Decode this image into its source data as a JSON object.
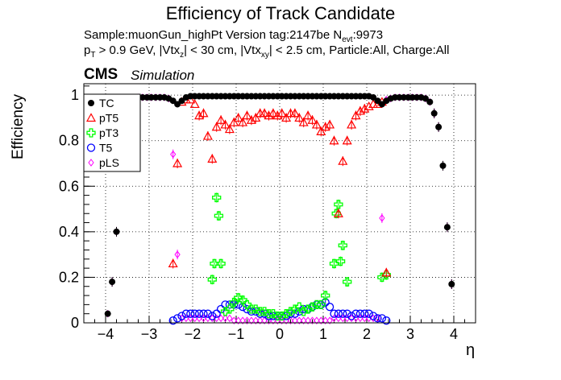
{
  "header": {
    "title": "Efficiency of Track Candidate",
    "line1": "Sample:muonGun_highPt   Version tag:2147be  N",
    "line1_sub": "evt",
    "line1_end": ":9973",
    "line2_a": "p",
    "line2_a_sub": "T",
    "line2_b": " > 0.9 GeV, |Vtx",
    "line2_b_sub": "z",
    "line2_c": "| < 30 cm, |Vtx",
    "line2_c_sub": "xy",
    "line2_d": "| < 2.5 cm, Particle:All, Charge:All",
    "cms": "CMS",
    "simulation": "Simulation"
  },
  "colors": {
    "TC": "#000000",
    "pT5": "#ff0000",
    "pT3": "#00ff00",
    "T5": "#0000ff",
    "pLS": "#ff00ff"
  },
  "chart_data": {
    "type": "scatter",
    "xlabel": "η",
    "ylabel": "Efficiency",
    "xlim": [
      -4.5,
      4.5
    ],
    "ylim": [
      0,
      1.05
    ],
    "x_ticks": [
      -4,
      -3,
      -2,
      -1,
      0,
      1,
      2,
      3,
      4
    ],
    "x_tick_labels": [
      "−4",
      "−3",
      "−2",
      "−1",
      "0",
      "1",
      "2",
      "3",
      "4"
    ],
    "y_ticks": [
      0,
      0.2,
      0.4,
      0.6,
      0.8,
      1
    ],
    "y_tick_labels": [
      "0",
      "0.2",
      "0.4",
      "0.6",
      "0.8",
      "1"
    ],
    "grid": true,
    "legend_position": "top-left",
    "legend": [
      "TC",
      "pT5",
      "pT3",
      "T5",
      "pLS"
    ],
    "series": [
      {
        "name": "TC",
        "marker": "filled-circle",
        "x": [
          -3.95,
          -3.85,
          -3.75,
          -3.65,
          -3.55,
          -3.45,
          -3.35,
          -3.25,
          -3.15,
          -3.05,
          -2.95,
          -2.85,
          -2.75,
          -2.65,
          -2.55,
          -2.45,
          -2.35,
          -2.25,
          -2.15,
          -2.05,
          -1.95,
          -1.85,
          -1.75,
          -1.65,
          -1.55,
          -1.45,
          -1.35,
          -1.25,
          -1.15,
          -1.05,
          -0.95,
          -0.85,
          -0.75,
          -0.65,
          -0.55,
          -0.45,
          -0.35,
          -0.25,
          -0.15,
          -0.05,
          0.05,
          0.15,
          0.25,
          0.35,
          0.45,
          0.55,
          0.65,
          0.75,
          0.85,
          0.95,
          1.05,
          1.15,
          1.25,
          1.35,
          1.45,
          1.55,
          1.65,
          1.75,
          1.85,
          1.95,
          2.05,
          2.15,
          2.25,
          2.35,
          2.45,
          2.55,
          2.65,
          2.75,
          2.85,
          2.95,
          3.05,
          3.15,
          3.25,
          3.35,
          3.45,
          3.55,
          3.65,
          3.75,
          3.85,
          3.95
        ],
        "y": [
          0.04,
          0.18,
          0.4,
          0.72,
          0.92,
          0.97,
          0.985,
          0.99,
          0.99,
          0.99,
          0.99,
          0.99,
          0.99,
          0.99,
          0.985,
          0.975,
          0.96,
          0.975,
          0.99,
          0.995,
          0.995,
          0.995,
          0.995,
          0.995,
          0.995,
          0.995,
          0.995,
          0.995,
          0.995,
          0.995,
          0.995,
          0.995,
          0.995,
          0.995,
          0.995,
          0.995,
          0.995,
          0.995,
          0.995,
          0.995,
          0.995,
          0.995,
          0.995,
          0.995,
          0.995,
          0.995,
          0.995,
          0.995,
          0.995,
          0.995,
          0.995,
          0.995,
          0.995,
          0.995,
          0.995,
          0.995,
          0.995,
          0.995,
          0.995,
          0.995,
          0.995,
          0.99,
          0.975,
          0.96,
          0.975,
          0.985,
          0.99,
          0.99,
          0.99,
          0.99,
          0.99,
          0.99,
          0.99,
          0.985,
          0.97,
          0.92,
          0.86,
          0.69,
          0.42,
          0.17
        ]
      },
      {
        "name": "pT5",
        "marker": "open-triangle",
        "x": [
          -2.45,
          -2.35,
          -2.25,
          -2.15,
          -2.05,
          -1.95,
          -1.85,
          -1.75,
          -1.65,
          -1.55,
          -1.45,
          -1.35,
          -1.25,
          -1.15,
          -1.05,
          -0.95,
          -0.85,
          -0.75,
          -0.65,
          -0.55,
          -0.45,
          -0.35,
          -0.25,
          -0.15,
          -0.05,
          0.05,
          0.15,
          0.25,
          0.35,
          0.45,
          0.55,
          0.65,
          0.75,
          0.85,
          0.95,
          1.05,
          1.15,
          1.25,
          1.35,
          1.45,
          1.55,
          1.65,
          1.75,
          1.85,
          1.95,
          2.05,
          2.15,
          2.25,
          2.35,
          2.45
        ],
        "y": [
          0.26,
          0.7,
          0.97,
          0.98,
          0.98,
          0.96,
          0.91,
          0.92,
          0.82,
          0.72,
          0.86,
          0.89,
          0.87,
          0.85,
          0.88,
          0.9,
          0.88,
          0.91,
          0.89,
          0.9,
          0.92,
          0.92,
          0.91,
          0.92,
          0.91,
          0.92,
          0.9,
          0.92,
          0.92,
          0.9,
          0.88,
          0.91,
          0.89,
          0.87,
          0.84,
          0.86,
          0.87,
          0.8,
          0.48,
          0.71,
          0.8,
          0.87,
          0.91,
          0.93,
          0.94,
          0.95,
          0.96,
          0.96,
          0.97,
          0.22
        ]
      },
      {
        "name": "pT3",
        "marker": "open-cross",
        "x": [
          -1.55,
          -1.5,
          -1.45,
          -1.4,
          -1.35,
          -1.25,
          -1.15,
          -1.05,
          -0.95,
          -0.85,
          -0.75,
          -0.65,
          -0.55,
          -0.45,
          -0.35,
          -0.25,
          -0.15,
          -0.05,
          0.05,
          0.15,
          0.25,
          0.35,
          0.45,
          0.55,
          0.65,
          0.75,
          0.85,
          0.95,
          1.05,
          1.25,
          1.3,
          1.35,
          1.4,
          1.45,
          1.55,
          2.35,
          2.45
        ],
        "y": [
          0.19,
          0.26,
          0.55,
          0.47,
          0.26,
          0.05,
          0.06,
          0.09,
          0.11,
          0.1,
          0.08,
          0.06,
          0.06,
          0.05,
          0.05,
          0.04,
          0.04,
          0.03,
          0.03,
          0.04,
          0.05,
          0.06,
          0.07,
          0.05,
          0.06,
          0.07,
          0.08,
          0.08,
          0.12,
          0.26,
          0.48,
          0.52,
          0.27,
          0.34,
          0.18,
          0.2,
          0.21
        ]
      },
      {
        "name": "T5",
        "marker": "open-circle",
        "x": [
          -2.45,
          -2.35,
          -2.25,
          -2.15,
          -2.05,
          -1.95,
          -1.85,
          -1.75,
          -1.65,
          -1.55,
          -1.45,
          -1.35,
          -1.25,
          -1.15,
          -1.05,
          -0.95,
          -0.85,
          -0.75,
          -0.65,
          -0.55,
          -0.45,
          -0.35,
          -0.25,
          -0.15,
          -0.05,
          0.05,
          0.15,
          0.25,
          0.35,
          0.45,
          0.55,
          0.65,
          0.75,
          0.85,
          0.95,
          1.05,
          1.15,
          1.25,
          1.35,
          1.45,
          1.55,
          1.65,
          1.75,
          1.85,
          1.95,
          2.05,
          2.15,
          2.25,
          2.35,
          2.45
        ],
        "y": [
          0.01,
          0.02,
          0.03,
          0.04,
          0.04,
          0.04,
          0.04,
          0.04,
          0.04,
          0.03,
          0.04,
          0.06,
          0.08,
          0.08,
          0.08,
          0.08,
          0.07,
          0.06,
          0.05,
          0.05,
          0.04,
          0.04,
          0.03,
          0.03,
          0.03,
          0.03,
          0.03,
          0.04,
          0.04,
          0.05,
          0.06,
          0.06,
          0.07,
          0.08,
          0.08,
          0.09,
          0.07,
          0.04,
          0.04,
          0.04,
          0.04,
          0.03,
          0.04,
          0.04,
          0.04,
          0.04,
          0.03,
          0.02,
          0.02,
          0.01
        ]
      },
      {
        "name": "pLS",
        "marker": "open-diamond",
        "x": [
          -3.95,
          -3.85,
          -3.75,
          -3.65,
          -3.55,
          -3.45,
          -3.35,
          -3.25,
          -3.15,
          -3.05,
          -2.95,
          -2.85,
          -2.75,
          -2.65,
          -2.55,
          -2.45,
          -2.35,
          -2.25,
          -2.15,
          -2.05,
          -1.95,
          -1.85,
          -1.75,
          -1.65,
          -1.55,
          -1.45,
          -1.35,
          -1.25,
          -1.15,
          -1.05,
          -0.95,
          -0.85,
          -0.75,
          -0.65,
          -0.55,
          -0.45,
          -0.35,
          -0.25,
          -0.15,
          -0.05,
          0.05,
          0.15,
          0.25,
          0.35,
          0.45,
          0.55,
          0.65,
          0.75,
          0.85,
          0.95,
          1.05,
          1.15,
          1.25,
          1.35,
          1.45,
          1.55,
          1.65,
          1.75,
          1.85,
          1.95,
          2.05,
          2.15,
          2.25,
          2.35,
          2.45,
          2.55,
          2.65,
          2.75,
          2.85,
          2.95,
          3.05,
          3.15,
          3.25,
          3.35,
          3.45,
          3.55,
          3.65,
          3.75,
          3.85,
          3.95
        ],
        "y": [
          0.04,
          0.18,
          0.4,
          0.72,
          0.92,
          0.97,
          0.985,
          0.99,
          0.99,
          0.99,
          0.99,
          0.99,
          0.99,
          0.99,
          0.985,
          0.74,
          0.3,
          0.02,
          0.02,
          0.02,
          0.02,
          0.02,
          0.02,
          0.02,
          0.02,
          0.02,
          0.02,
          0.02,
          0.02,
          0.01,
          0.01,
          0.01,
          0.01,
          0.01,
          0.01,
          0.01,
          0.01,
          0.01,
          0.01,
          0.01,
          0.01,
          0.01,
          0.01,
          0.01,
          0.01,
          0.01,
          0.01,
          0.01,
          0.01,
          0.01,
          0.01,
          0.01,
          0.02,
          0.02,
          0.02,
          0.02,
          0.02,
          0.02,
          0.02,
          0.02,
          0.02,
          0.02,
          0.02,
          0.46,
          0.98,
          0.985,
          0.99,
          0.99,
          0.99,
          0.99,
          0.99,
          0.99,
          0.99,
          0.985,
          0.97,
          0.92,
          0.86,
          0.69,
          0.42,
          0.17
        ]
      }
    ]
  }
}
